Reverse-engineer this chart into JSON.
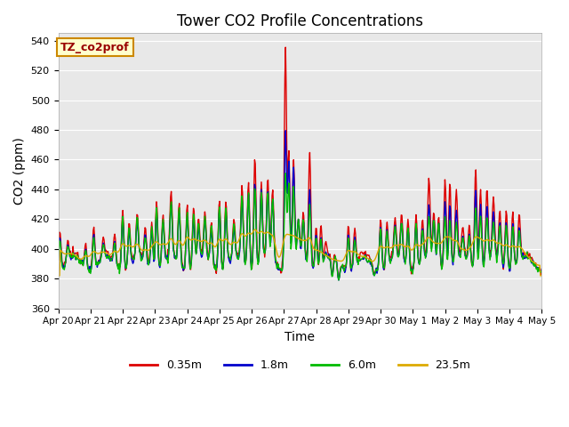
{
  "title": "Tower CO2 Profile Concentrations",
  "xlabel": "Time",
  "ylabel": "CO2 (ppm)",
  "ylim": [
    360,
    545
  ],
  "yticks": [
    360,
    380,
    400,
    420,
    440,
    460,
    480,
    500,
    520,
    540
  ],
  "colors": {
    "0.35m": "#dd0000",
    "1.8m": "#0000cc",
    "6.0m": "#00bb00",
    "23.5m": "#ddaa00"
  },
  "legend_labels": [
    "0.35m",
    "1.8m",
    "6.0m",
    "23.5m"
  ],
  "annotation_text": "TZ_co2prof",
  "annotation_bg": "#ffffcc",
  "annotation_edge": "#cc8800",
  "bg_color": "#e8e8e8",
  "xtick_labels": [
    "Apr 20",
    "Apr 21",
    "Apr 22",
    "Apr 23",
    "Apr 24",
    "Apr 25",
    "Apr 26",
    "Apr 27",
    "Apr 28",
    "Apr 29",
    "Apr 30",
    "May 1",
    "May 2",
    "May 3",
    "May 4",
    "May 5"
  ],
  "linewidth": 1.0,
  "n_points": 720
}
